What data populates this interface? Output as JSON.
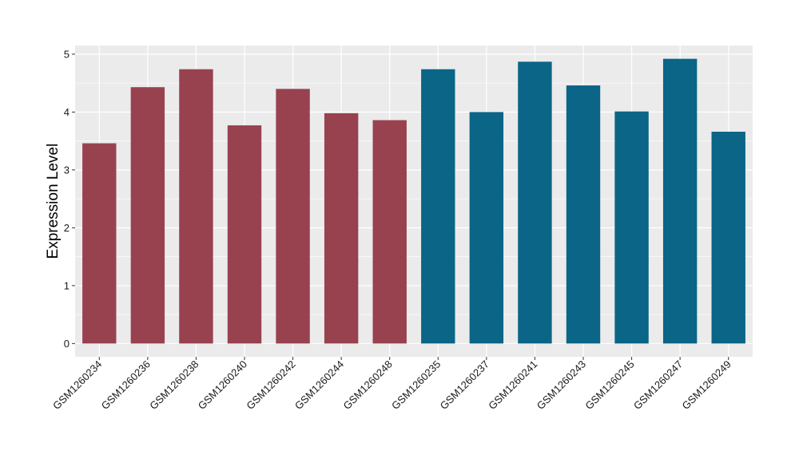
{
  "chart_data": {
    "type": "bar",
    "title": "",
    "xlabel": "",
    "ylabel": "Expression Level",
    "ylim": [
      -0.23,
      5.15
    ],
    "yticks": [
      0,
      1,
      2,
      3,
      4,
      5
    ],
    "grid": true,
    "legend": "none",
    "background": "#ebebeb",
    "gridline_color": "#ffffff",
    "categories": [
      "GSM1260234",
      "GSM1260236",
      "GSM1260238",
      "GSM1260240",
      "GSM1260242",
      "GSM1260244",
      "GSM1260248",
      "GSM1260235",
      "GSM1260237",
      "GSM1260241",
      "GSM1260243",
      "GSM1260245",
      "GSM1260247",
      "GSM1260249"
    ],
    "values": [
      3.46,
      4.43,
      4.74,
      3.77,
      4.4,
      3.98,
      3.86,
      4.74,
      4.0,
      4.87,
      4.46,
      4.01,
      4.92,
      3.66
    ],
    "bar_colors": [
      "#98424f",
      "#98424f",
      "#98424f",
      "#98424f",
      "#98424f",
      "#98424f",
      "#98424f",
      "#0b6587",
      "#0b6587",
      "#0b6587",
      "#0b6587",
      "#0b6587",
      "#0b6587",
      "#0b6587"
    ]
  }
}
